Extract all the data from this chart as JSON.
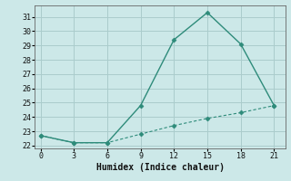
{
  "xlabel": "Humidex (Indice chaleur)",
  "background_color": "#cce8e8",
  "grid_color": "#aacccc",
  "line1_x": [
    0,
    3,
    6,
    9,
    12,
    15,
    18,
    21
  ],
  "line1_y": [
    22.7,
    22.2,
    22.2,
    24.8,
    29.4,
    31.3,
    29.1,
    24.8
  ],
  "line2_x": [
    0,
    3,
    6,
    9,
    12,
    15,
    18,
    21
  ],
  "line2_y": [
    22.7,
    22.2,
    22.2,
    22.8,
    23.4,
    23.9,
    24.3,
    24.8
  ],
  "line_color": "#2e8b7a",
  "markersize": 2.5,
  "xlim": [
    -0.5,
    22
  ],
  "ylim": [
    21.8,
    31.8
  ],
  "xticks": [
    0,
    3,
    6,
    9,
    12,
    15,
    18,
    21
  ],
  "yticks": [
    22,
    23,
    24,
    25,
    26,
    27,
    28,
    29,
    30,
    31
  ],
  "tick_fontsize": 6,
  "xlabel_fontsize": 7
}
